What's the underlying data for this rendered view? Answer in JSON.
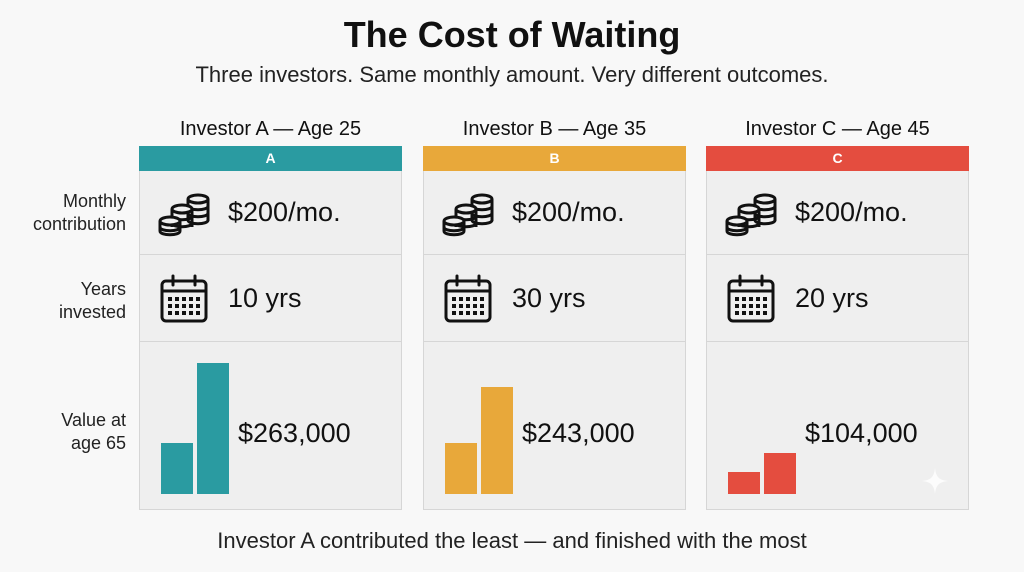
{
  "title": "The Cost of Waiting",
  "subtitle": "Three investors. Same monthly amount. Very different outcomes.",
  "row_labels": {
    "monthly": [
      "Monthly",
      "contribution"
    ],
    "years": [
      "Years",
      "invested"
    ],
    "value": [
      "Value at",
      "age 65"
    ]
  },
  "investors": [
    {
      "name": "Investor A — Age 25",
      "badge": "A",
      "color": "#2a9ba1",
      "monthly": "$200/mo.",
      "years": "10 yrs",
      "value": "$263,000",
      "icons": {
        "money": "coin-stack-icon",
        "time": "calendar-icon"
      },
      "bars": [
        0.39,
        0.99
      ]
    },
    {
      "name": "Investor B — Age 35",
      "badge": "B",
      "color": "#e8a83a",
      "monthly": "$200/mo.",
      "years": "30 yrs",
      "value": "$243,000",
      "icons": {
        "money": "coin-stack-icon",
        "time": "calendar-icon"
      },
      "bars": [
        0.39,
        0.81
      ]
    },
    {
      "name": "Investor C — Age 45",
      "badge": "C",
      "color": "#e44d3f",
      "monthly": "$200/mo.",
      "years": "20 yrs",
      "value": "$104,000",
      "icons": {
        "money": "coin-stack-icon",
        "time": "calendar-icon"
      },
      "bars": [
        0.17,
        0.31
      ]
    }
  ],
  "footer": "Investor A contributed the least — and finished with the most"
}
